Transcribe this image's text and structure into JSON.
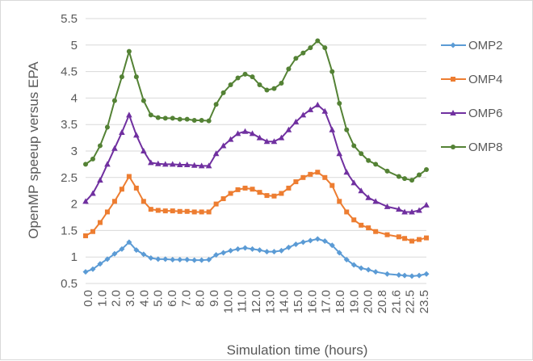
{
  "chart_data": {
    "type": "line",
    "title": "",
    "xlabel": "Simulation time (hours)",
    "ylabel": "OpenMP speeup versus EPA",
    "ylim": [
      0.5,
      5.5
    ],
    "yticks": [
      "0.5",
      "1",
      "1.5",
      "2",
      "2.5",
      "3",
      "3.5",
      "4",
      "4.5",
      "5",
      "5.5"
    ],
    "xticks": [
      "0.0",
      "1.0",
      "2.0",
      "3.0",
      "4.0",
      "5.0",
      "6.0",
      "7.0",
      "8.0",
      "9.0",
      "10.0",
      "11.0",
      "12.0",
      "13.0",
      "14.0",
      "15.0",
      "16.0",
      "17.0",
      "18.0",
      "19.0",
      "20.0",
      "20.8",
      "21.6",
      "22.5",
      "23.5"
    ],
    "grid": "horizontal",
    "legend_position": "right",
    "x": [
      0.0,
      0.5,
      1.0,
      1.5,
      2.0,
      2.5,
      3.0,
      3.5,
      4.0,
      4.5,
      5.0,
      5.5,
      6.0,
      6.5,
      7.0,
      7.5,
      8.0,
      8.5,
      9.0,
      9.5,
      10.0,
      10.5,
      11.0,
      11.5,
      12.0,
      12.5,
      13.0,
      13.5,
      14.0,
      14.5,
      15.0,
      15.5,
      16.0,
      16.5,
      17.0,
      17.5,
      18.0,
      18.5,
      19.0,
      19.5,
      20.0,
      20.8,
      21.6,
      22.0,
      22.5,
      23.0,
      23.5
    ],
    "series": [
      {
        "name": "OMP2",
        "color": "#5b9bd5",
        "marker": "diamond",
        "values": [
          0.72,
          0.77,
          0.87,
          0.96,
          1.06,
          1.15,
          1.28,
          1.13,
          1.05,
          0.98,
          0.96,
          0.96,
          0.95,
          0.95,
          0.95,
          0.94,
          0.94,
          0.95,
          1.04,
          1.08,
          1.12,
          1.15,
          1.17,
          1.15,
          1.13,
          1.1,
          1.1,
          1.12,
          1.18,
          1.24,
          1.28,
          1.31,
          1.34,
          1.3,
          1.22,
          1.08,
          0.95,
          0.85,
          0.79,
          0.76,
          0.72,
          0.68,
          0.66,
          0.65,
          0.64,
          0.65,
          0.68
        ]
      },
      {
        "name": "OMP4",
        "color": "#ed7d31",
        "marker": "square",
        "values": [
          1.4,
          1.48,
          1.65,
          1.85,
          2.05,
          2.28,
          2.52,
          2.3,
          2.05,
          1.9,
          1.88,
          1.87,
          1.87,
          1.86,
          1.86,
          1.85,
          1.85,
          1.85,
          2.0,
          2.1,
          2.2,
          2.27,
          2.3,
          2.28,
          2.22,
          2.16,
          2.15,
          2.2,
          2.3,
          2.42,
          2.5,
          2.56,
          2.6,
          2.5,
          2.35,
          2.05,
          1.85,
          1.7,
          1.6,
          1.55,
          1.48,
          1.42,
          1.38,
          1.35,
          1.3,
          1.33,
          1.36
        ]
      },
      {
        "name": "OMP6",
        "color": "#7030a0",
        "marker": "triangle",
        "values": [
          2.05,
          2.2,
          2.45,
          2.75,
          3.05,
          3.35,
          3.68,
          3.3,
          3.0,
          2.78,
          2.76,
          2.75,
          2.75,
          2.74,
          2.74,
          2.73,
          2.72,
          2.72,
          2.95,
          3.1,
          3.22,
          3.33,
          3.37,
          3.33,
          3.25,
          3.18,
          3.18,
          3.25,
          3.4,
          3.55,
          3.68,
          3.78,
          3.87,
          3.75,
          3.4,
          2.95,
          2.6,
          2.4,
          2.25,
          2.12,
          2.05,
          1.95,
          1.9,
          1.85,
          1.85,
          1.88,
          1.98
        ]
      },
      {
        "name": "OMP8",
        "color": "#548235",
        "marker": "circle",
        "values": [
          2.75,
          2.85,
          3.1,
          3.45,
          3.95,
          4.4,
          4.88,
          4.4,
          3.95,
          3.68,
          3.63,
          3.62,
          3.62,
          3.6,
          3.6,
          3.58,
          3.58,
          3.57,
          3.88,
          4.1,
          4.25,
          4.38,
          4.45,
          4.4,
          4.25,
          4.15,
          4.18,
          4.28,
          4.55,
          4.75,
          4.85,
          4.95,
          5.08,
          4.95,
          4.5,
          3.9,
          3.4,
          3.1,
          2.95,
          2.82,
          2.75,
          2.62,
          2.52,
          2.48,
          2.45,
          2.55,
          2.65
        ]
      }
    ]
  }
}
